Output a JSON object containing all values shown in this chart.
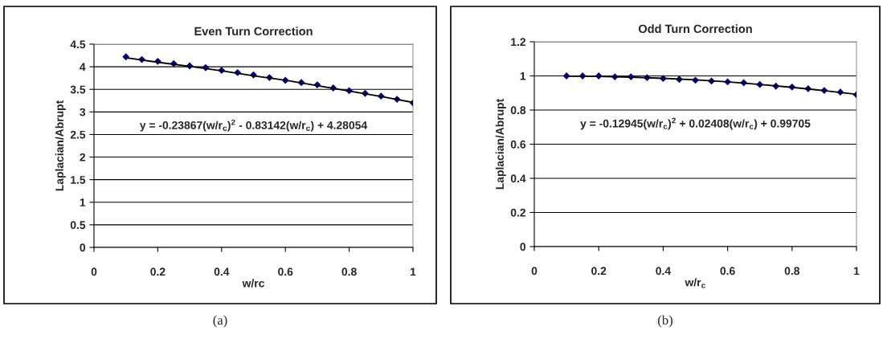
{
  "chart_data": [
    {
      "type": "scatter",
      "title": "Even Turn Correction",
      "xlabel": "w/rc",
      "ylabel": "Laplacian/Abrupt",
      "annotations": [
        "y = -0.23867(w/r$_{c}$)$^{2}$ - 0.83142(w/r$_{c}$) + 4.28054",
        "(a)"
      ],
      "xlim": [
        0,
        1
      ],
      "xticks": [
        0,
        0.2,
        0.4,
        0.6,
        0.8,
        1
      ],
      "ylim": [
        0,
        4.5
      ],
      "yticks": [
        0,
        0.5,
        1,
        1.5,
        2,
        2.5,
        3,
        3.5,
        4,
        4.5
      ],
      "grid": "y",
      "series": [
        {
          "marker": "diamond",
          "color": "#000080",
          "x": [
            0.1,
            0.15,
            0.2,
            0.25,
            0.3,
            0.35,
            0.4,
            0.45,
            0.5,
            0.55,
            0.6,
            0.65,
            0.7,
            0.75,
            0.8,
            0.85,
            0.9,
            0.95,
            1.0
          ],
          "values": [
            4.22,
            4.16,
            4.12,
            4.07,
            4.02,
            3.98,
            3.92,
            3.87,
            3.82,
            3.76,
            3.7,
            3.65,
            3.6,
            3.53,
            3.47,
            3.41,
            3.35,
            3.28,
            3.2
          ]
        },
        {
          "type": "line",
          "color": "#000000",
          "x": [
            0.1,
            0.2,
            0.3,
            0.4,
            0.5,
            0.6,
            0.7,
            0.8,
            0.9,
            1.0
          ],
          "values": [
            4.2,
            4.1,
            4.01,
            3.91,
            3.8,
            3.7,
            3.58,
            3.46,
            3.34,
            3.21
          ]
        }
      ]
    },
    {
      "type": "scatter",
      "title": "Odd Turn Correction",
      "xlabel": "w/r$_{c}$",
      "ylabel": "Laplacian/Abrupt",
      "annotations": [
        "y = -0.12945(w/r$_{c}$)$^{2}$ + 0.02408(w/r$_{c}$) + 0.99705",
        "(b)"
      ],
      "xlim": [
        0,
        1
      ],
      "xticks": [
        0,
        0.2,
        0.4,
        0.6,
        0.8,
        1
      ],
      "ylim": [
        0,
        1.2
      ],
      "yticks": [
        0,
        0.2,
        0.4,
        0.6,
        0.8,
        1,
        1.2
      ],
      "grid": "y",
      "series": [
        {
          "marker": "diamond",
          "color": "#000080",
          "x": [
            0.1,
            0.15,
            0.2,
            0.25,
            0.3,
            0.35,
            0.4,
            0.45,
            0.5,
            0.55,
            0.6,
            0.65,
            0.7,
            0.75,
            0.8,
            0.85,
            0.9,
            0.95,
            1.0
          ],
          "values": [
            1.0,
            1.0,
            1.0,
            0.995,
            0.995,
            0.99,
            0.985,
            0.98,
            0.975,
            0.97,
            0.965,
            0.96,
            0.95,
            0.94,
            0.935,
            0.925,
            0.915,
            0.905,
            0.89
          ]
        },
        {
          "type": "line",
          "color": "#000000",
          "x": [
            0.1,
            0.2,
            0.3,
            0.4,
            0.5,
            0.6,
            0.7,
            0.8,
            0.9,
            1.0
          ],
          "values": [
            0.998,
            0.997,
            0.993,
            0.986,
            0.977,
            0.965,
            0.95,
            0.933,
            0.914,
            0.892
          ]
        }
      ]
    }
  ]
}
